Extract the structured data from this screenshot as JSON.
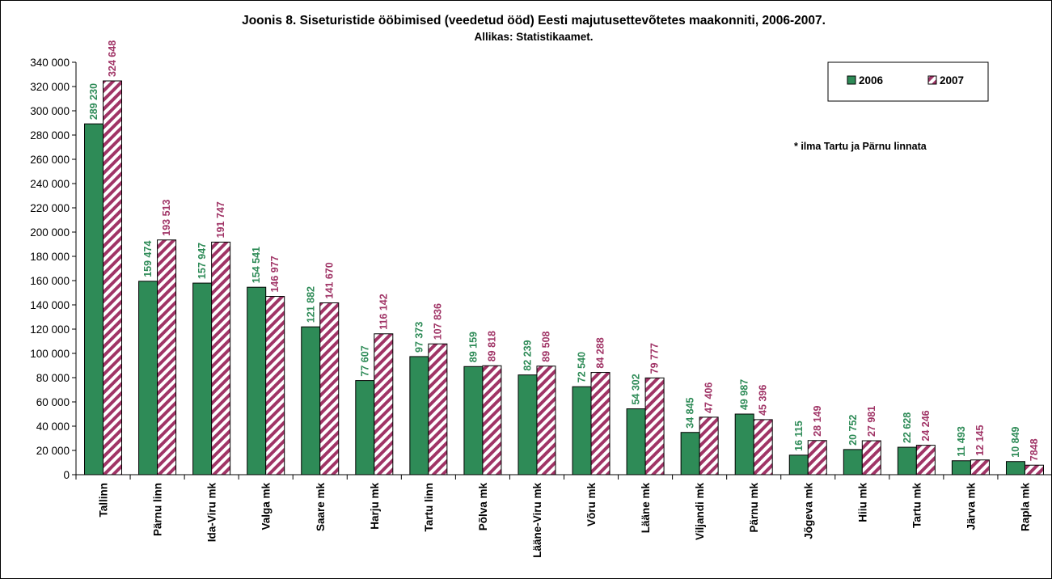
{
  "colors": {
    "series_2006": "#2e8b57",
    "series_2007_stripe": "#a03466",
    "label_2006": "#2e8b57",
    "label_2007": "#a03466"
  },
  "note": "* ilma Tartu ja Pärnu linnata",
  "chart_data": {
    "type": "bar",
    "title": "Joonis 8. Siseturistide ööbimised (veedetud ööd) Eesti majutusettevõtetes maakonniti, 2006-2007.",
    "subtitle": "Allikas: Statistikaamet.",
    "categories": [
      "Tallinn",
      "Pärnu linn",
      "Ida-Viru mk",
      "Valga mk",
      "Saare mk",
      "Harju mk",
      "Tartu linn",
      "Põlva mk",
      "Lääne-Viru mk",
      "Võru mk",
      "Lääne mk",
      "Viljandi mk",
      "Pärnu mk",
      "Jõgeva mk",
      "Hiiu mk",
      "Tartu mk",
      "Järva mk",
      "Rapla mk"
    ],
    "series": [
      {
        "name": "2006",
        "values": [
          289230,
          159474,
          157947,
          154541,
          121882,
          77607,
          97373,
          89159,
          82239,
          72540,
          54302,
          34845,
          49987,
          16115,
          20752,
          22628,
          11493,
          10849
        ],
        "labels": [
          "289 230",
          "159 474",
          "157 947",
          "154 541",
          "121 882",
          "77 607",
          "97 373",
          "89 159",
          "82 239",
          "72 540",
          "54 302",
          "34 845",
          "49 987",
          "16 115",
          "20 752",
          "22 628",
          "11 493",
          "10 849"
        ]
      },
      {
        "name": "2007",
        "values": [
          324648,
          193513,
          191747,
          146977,
          141670,
          116142,
          107836,
          89818,
          89508,
          84288,
          79777,
          47406,
          45396,
          28149,
          27981,
          24246,
          12145,
          7848
        ],
        "labels": [
          "324 648",
          "193 513",
          "191 747",
          "146 977",
          "141 670",
          "116 142",
          "107 836",
          "89 818",
          "89 508",
          "84 288",
          "79 777",
          "47 406",
          "45 396",
          "28 149",
          "27 981",
          "24 246",
          "12 145",
          "7848"
        ]
      }
    ],
    "ylim": [
      0,
      340000
    ],
    "yticks": [
      0,
      20000,
      40000,
      60000,
      80000,
      100000,
      120000,
      140000,
      160000,
      180000,
      200000,
      220000,
      240000,
      260000,
      280000,
      300000,
      320000,
      340000
    ],
    "ytick_labels": [
      "0",
      "20 000",
      "40 000",
      "60 000",
      "80 000",
      "100 000",
      "120 000",
      "140 000",
      "160 000",
      "180 000",
      "200 000",
      "220 000",
      "240 000",
      "260 000",
      "280 000",
      "300 000",
      "320 000",
      "340 000"
    ],
    "grid": false,
    "legend": "top-right"
  }
}
